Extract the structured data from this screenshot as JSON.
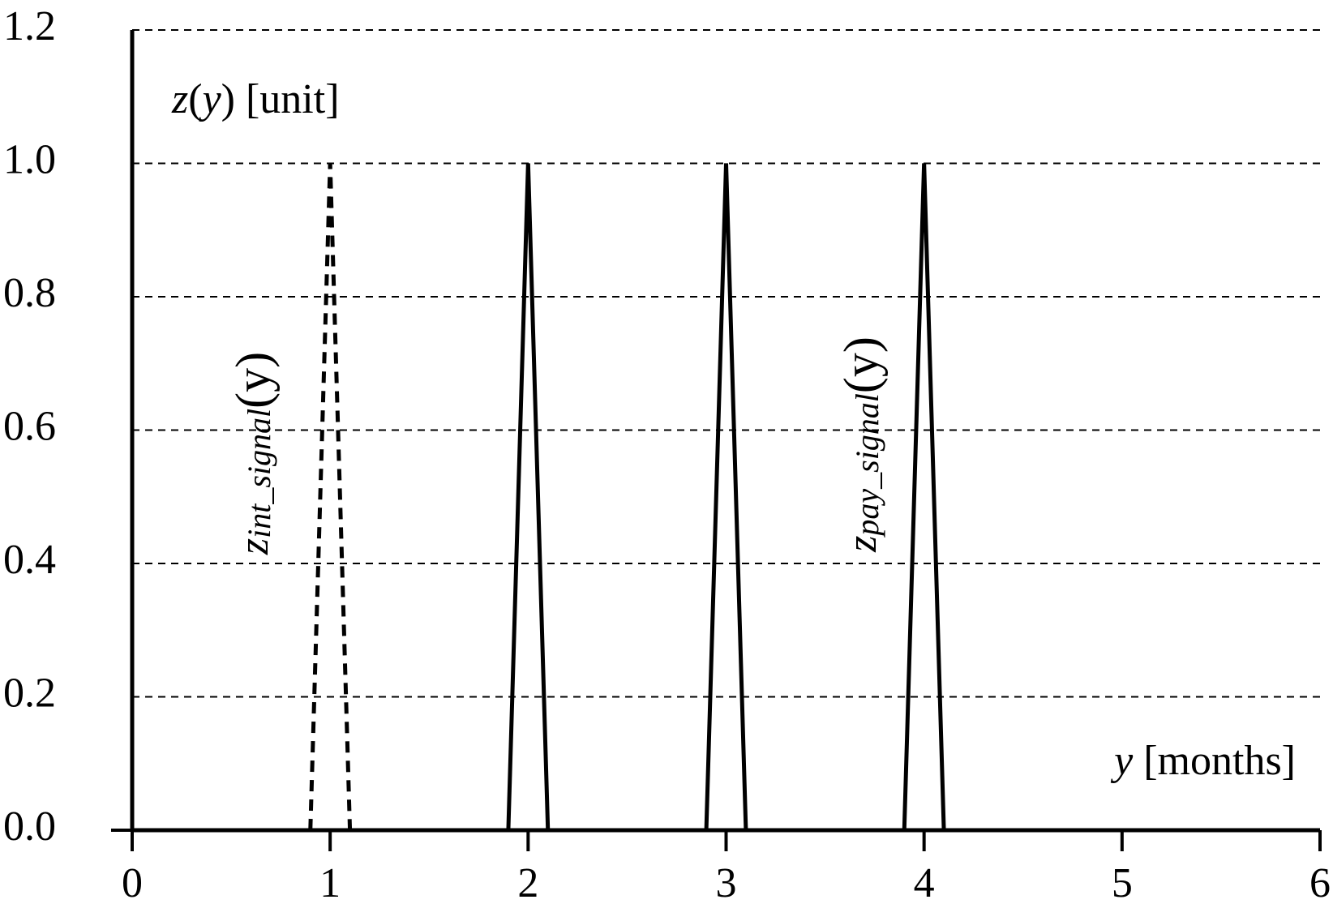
{
  "chart_data": {
    "type": "line",
    "y_label": [
      "z",
      "(",
      "y",
      ") [unit]"
    ],
    "x_label": [
      "y",
      " [months]"
    ],
    "xlim": [
      0,
      6
    ],
    "xticks": [
      0,
      1,
      2,
      3,
      4,
      5,
      6
    ],
    "ylim": [
      0,
      1.2
    ],
    "yticks": [
      {
        "value": 0,
        "label": "0.0"
      },
      {
        "value": 0.2,
        "label": "0.2"
      },
      {
        "value": 0.4,
        "label": "0.4"
      },
      {
        "value": 0.6,
        "label": "0.6"
      },
      {
        "value": 0.8,
        "label": "0.8"
      },
      {
        "value": 1,
        "label": "1.0"
      },
      {
        "value": 1.2,
        "label": "1.2"
      }
    ],
    "grid": true,
    "series": [
      {
        "color": "#000000",
        "style": "dashed",
        "x": [
          0.9,
          1,
          1.1
        ],
        "values": [
          0,
          1,
          0
        ]
      },
      {
        "color": "#000000",
        "style": "solid",
        "x": [
          1.9,
          2,
          2.1,
          null,
          2.9,
          3,
          3.1,
          null,
          3.9,
          4,
          4.1
        ],
        "values": [
          0,
          1,
          0,
          null,
          0,
          1,
          0,
          null,
          0,
          1,
          0
        ]
      }
    ],
    "annotations": [
      {
        "base": "z",
        "sub": "int_signal",
        "tail": "(y)"
      },
      {
        "base": "z",
        "sub": "pay_signal",
        "tail": "(y)"
      }
    ]
  }
}
